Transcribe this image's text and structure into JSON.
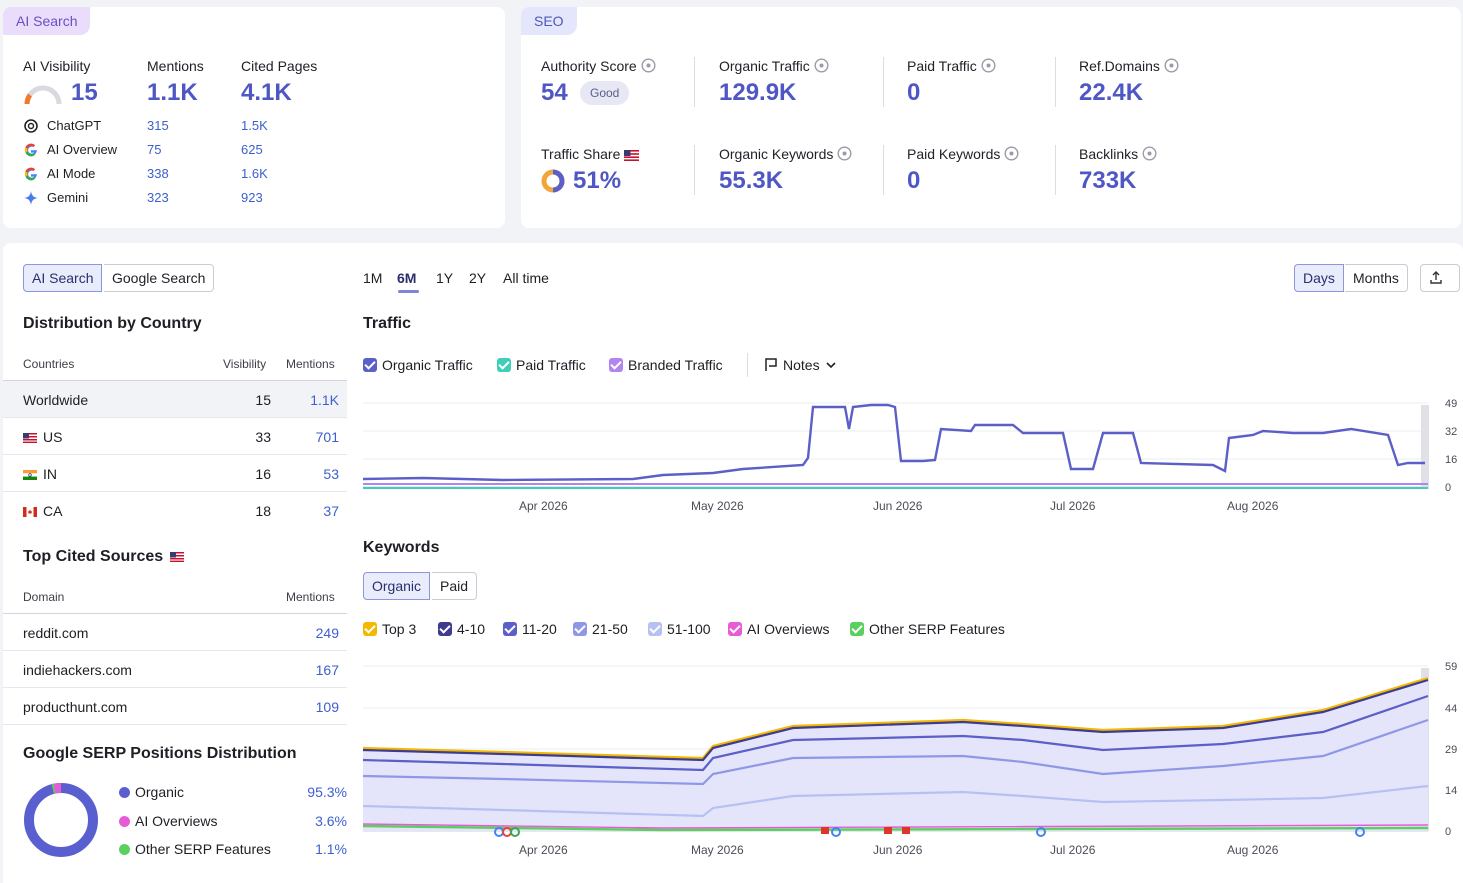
{
  "ai_card": {
    "tag": "AI Search",
    "visibility_label": "AI Visibility",
    "visibility_value": "15",
    "mentions_label": "Mentions",
    "mentions_value": "1.1K",
    "cited_label": "Cited Pages",
    "cited_value": "4.1K",
    "sources": [
      {
        "name": "ChatGPT",
        "mentions": "315",
        "cited": "1.5K",
        "icon": "chatgpt-icon"
      },
      {
        "name": "AI Overview",
        "mentions": "75",
        "cited": "625",
        "icon": "google-icon"
      },
      {
        "name": "AI Mode",
        "mentions": "338",
        "cited": "1.6K",
        "icon": "google-icon"
      },
      {
        "name": "Gemini",
        "mentions": "323",
        "cited": "923",
        "icon": "gemini-icon"
      }
    ]
  },
  "seo_card": {
    "tag": "SEO",
    "authority_label": "Authority Score",
    "authority_value": "54",
    "authority_badge": "Good",
    "organic_traffic_label": "Organic Traffic",
    "organic_traffic_value": "129.9K",
    "paid_traffic_label": "Paid Traffic",
    "paid_traffic_value": "0",
    "refdomains_label": "Ref.Domains",
    "refdomains_value": "22.4K",
    "traffic_share_label": "Traffic Share",
    "traffic_share_value": "51%",
    "organic_keywords_label": "Organic Keywords",
    "organic_keywords_value": "55.3K",
    "paid_keywords_label": "Paid Keywords",
    "paid_keywords_value": "0",
    "backlinks_label": "Backlinks",
    "backlinks_value": "733K"
  },
  "toggle": {
    "ai": "AI Search",
    "google": "Google Search"
  },
  "country": {
    "title": "Distribution by Country",
    "col1": "Countries",
    "col2": "Visibility",
    "col3": "Mentions",
    "rows": [
      {
        "name": "Worldwide",
        "vis": "15",
        "men": "1.1K"
      },
      {
        "name": "US",
        "vis": "33",
        "men": "701"
      },
      {
        "name": "IN",
        "vis": "16",
        "men": "53"
      },
      {
        "name": "CA",
        "vis": "18",
        "men": "37"
      }
    ]
  },
  "cited": {
    "title": "Top Cited Sources",
    "col1": "Domain",
    "col2": "Mentions",
    "rows": [
      {
        "domain": "reddit.com",
        "men": "249"
      },
      {
        "domain": "indiehackers.com",
        "men": "167"
      },
      {
        "domain": "producthunt.com",
        "men": "109"
      }
    ]
  },
  "serp": {
    "title": "Google SERP Positions Distribution",
    "items": [
      {
        "label": "Organic",
        "pct": "95.3%",
        "color": "#5a5fd0"
      },
      {
        "label": "AI Overviews",
        "pct": "3.6%",
        "color": "#e85bd6"
      },
      {
        "label": "Other SERP Features",
        "pct": "1.1%",
        "color": "#5ad05e"
      }
    ]
  },
  "ranges": [
    "1M",
    "6M",
    "1Y",
    "2Y",
    "All time"
  ],
  "days_label": "Days",
  "months_label": "Months",
  "traffic": {
    "title": "Traffic",
    "legend": [
      {
        "label": "Organic Traffic",
        "color": "#5b5fc7"
      },
      {
        "label": "Paid Traffic",
        "color": "#3fcfb8"
      },
      {
        "label": "Branded Traffic",
        "color": "#b085f0"
      }
    ],
    "notes_label": "Notes",
    "yticks": [
      "49",
      "32",
      "16",
      "0"
    ]
  },
  "keywords": {
    "title": "Keywords",
    "tab_organic": "Organic",
    "tab_paid": "Paid",
    "legend": [
      {
        "label": "Top 3",
        "color": "#f5b800"
      },
      {
        "label": "4-10",
        "color": "#3d3c8f"
      },
      {
        "label": "11-20",
        "color": "#5b5fc7"
      },
      {
        "label": "21-50",
        "color": "#8f98e6"
      },
      {
        "label": "51-100",
        "color": "#b7c0f3"
      },
      {
        "label": "AI Overviews",
        "color": "#e85bd6"
      },
      {
        "label": "Other SERP Features",
        "color": "#5ad05e"
      }
    ],
    "yticks": [
      "59",
      "44",
      "29",
      "14",
      "0"
    ]
  },
  "xticks": [
    "Apr 2026",
    "May 2026",
    "Jun 2026",
    "Jul 2026",
    "Aug 2026"
  ]
}
